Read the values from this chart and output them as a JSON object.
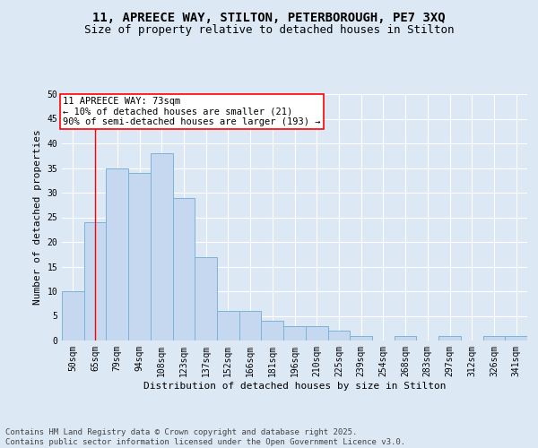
{
  "title_line1": "11, APREECE WAY, STILTON, PETERBOROUGH, PE7 3XQ",
  "title_line2": "Size of property relative to detached houses in Stilton",
  "xlabel": "Distribution of detached houses by size in Stilton",
  "ylabel": "Number of detached properties",
  "categories": [
    "50sqm",
    "65sqm",
    "79sqm",
    "94sqm",
    "108sqm",
    "123sqm",
    "137sqm",
    "152sqm",
    "166sqm",
    "181sqm",
    "196sqm",
    "210sqm",
    "225sqm",
    "239sqm",
    "254sqm",
    "268sqm",
    "283sqm",
    "297sqm",
    "312sqm",
    "326sqm",
    "341sqm"
  ],
  "values": [
    10,
    24,
    35,
    34,
    38,
    29,
    17,
    6,
    6,
    4,
    3,
    3,
    2,
    1,
    0,
    1,
    0,
    1,
    0,
    1,
    1
  ],
  "bar_color": "#c5d8f0",
  "bar_edge_color": "#7ab4d8",
  "reference_line_x": 1,
  "reference_line_color": "red",
  "annotation_text": "11 APREECE WAY: 73sqm\n← 10% of detached houses are smaller (21)\n90% of semi-detached houses are larger (193) →",
  "annotation_box_color": "white",
  "annotation_box_edge_color": "red",
  "ylim": [
    0,
    50
  ],
  "yticks": [
    0,
    5,
    10,
    15,
    20,
    25,
    30,
    35,
    40,
    45,
    50
  ],
  "background_color": "#dde8f5",
  "plot_background_color": "#dde8f5",
  "grid_color": "white",
  "footer_text": "Contains HM Land Registry data © Crown copyright and database right 2025.\nContains public sector information licensed under the Open Government Licence v3.0.",
  "title_fontsize": 10,
  "subtitle_fontsize": 9,
  "axis_label_fontsize": 8,
  "tick_fontsize": 7,
  "annotation_fontsize": 7.5,
  "footer_fontsize": 6.5
}
